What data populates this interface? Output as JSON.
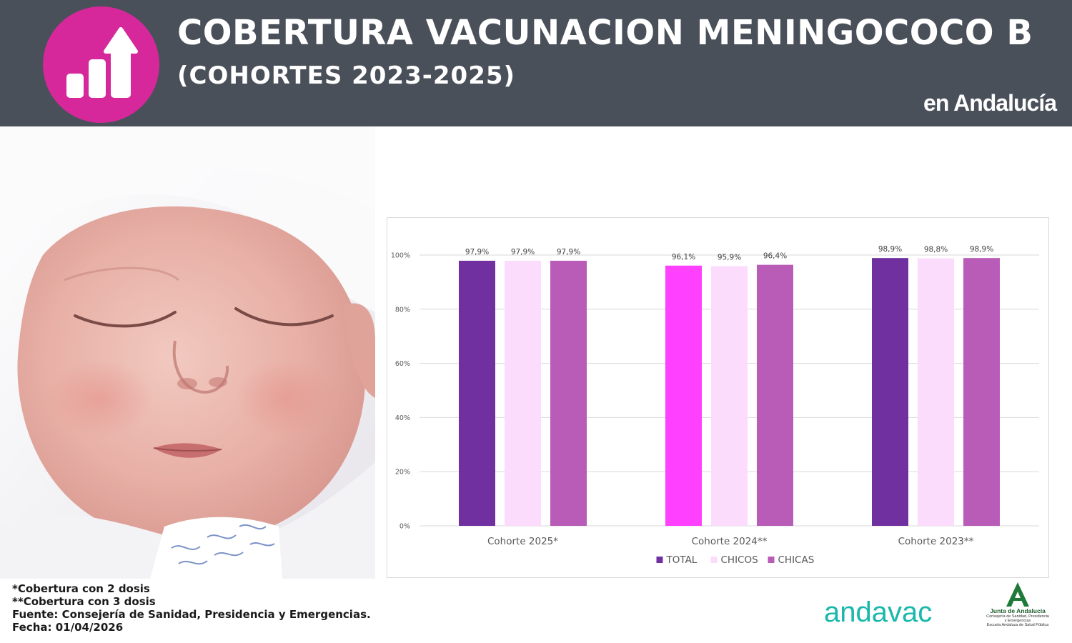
{
  "header": {
    "title": "COBERTURA VACUNACION MENINGOCOCO B",
    "subtitle": "(COHORTES 2023-2025)",
    "region": "en Andalucía",
    "logo_icon": "bar-chart-arrow-up-icon",
    "logo_color": "#d6289a",
    "background": "#4a5059"
  },
  "chart_data": {
    "type": "bar",
    "categories": [
      "Cohorte 2025*",
      "Cohorte 2024**",
      "Cohorte 2023**"
    ],
    "series": [
      {
        "name": "TOTAL",
        "values": [
          97.9,
          96.1,
          98.9
        ],
        "labels": [
          "97,9%",
          "96,1%",
          "98,9%"
        ],
        "color": "#7030a0"
      },
      {
        "name": "CHICOS",
        "values": [
          97.9,
          95.9,
          98.8
        ],
        "labels": [
          "97,9%",
          "95,9%",
          "98,8%"
        ],
        "color": "#fcdcfc"
      },
      {
        "name": "CHICAS",
        "values": [
          97.9,
          96.4,
          98.9
        ],
        "labels": [
          "97,9%",
          "96,4%",
          "98,9%"
        ],
        "color": "#b85cb8"
      }
    ],
    "highlight_color": "#ff40ff",
    "yticks": [
      "0%",
      "20%",
      "40%",
      "60%",
      "80%",
      "100%"
    ],
    "ylim": [
      0,
      100
    ],
    "grid": true,
    "legend": "bottom",
    "title": "",
    "xlabel": "",
    "ylabel": ""
  },
  "footnotes": {
    "line1": "*Cobertura con 2 dosis",
    "line2": "**Cobertura con 3 dosis",
    "line3": "Fuente: Consejería de Sanidad, Presidencia y Emergencias.",
    "line4": "Fecha: 01/04/2026"
  },
  "logos": {
    "andavac": "andavac",
    "junta_title": "Junta de Andalucía",
    "junta_sub1": "Consejería de Sanidad, Presidencia",
    "junta_sub2": "y Emergencias",
    "junta_sub3": "Escuela Andaluza de Salud Pública"
  }
}
